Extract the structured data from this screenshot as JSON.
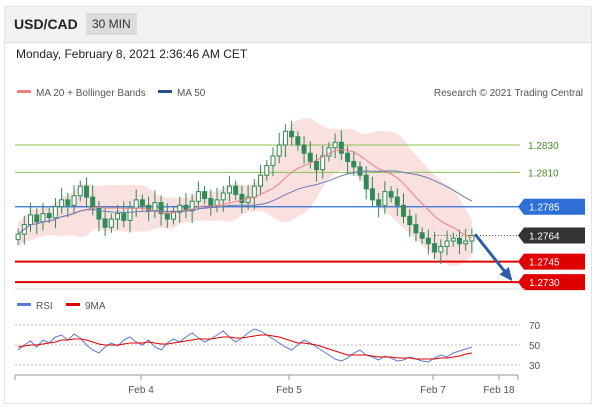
{
  "header": {
    "symbol": "USD/CAD",
    "timeframe": "30 MIN",
    "datetime": "Monday, February 8, 2021 2:36:46 AM CET"
  },
  "legend": {
    "ma20_bollinger": "MA 20 + Bollinger Bands",
    "ma50": "MA 50",
    "credit": "Research © 2021 Trading Central",
    "rsi": "RSI",
    "ma9": "9MA"
  },
  "colors": {
    "candle": "#2e8b57",
    "ma20": "#f08080",
    "bollinger_fill": "#fadada",
    "ma50": "#6a7ab5",
    "support_line": "#e00000",
    "resistance_line": "#8cc152",
    "pivot_line": "#2e6fd8",
    "last_price_box": "#333333",
    "arrow": "#2e5fa8",
    "rsi_line": "#5b7bd5",
    "rsi_ma": "#e00000"
  },
  "chart_data": [
    {
      "type": "candlestick",
      "title": "USD/CAD 30 MIN",
      "last_price": 1.2764,
      "levels": [
        {
          "value": 1.283,
          "label": "1.2830",
          "kind": "resistance"
        },
        {
          "value": 1.281,
          "label": "1.2810",
          "kind": "resistance"
        },
        {
          "value": 1.2785,
          "label": "1.2785",
          "kind": "pivot"
        },
        {
          "value": 1.2764,
          "label": "1.2764",
          "kind": "last-price"
        },
        {
          "value": 1.2745,
          "label": "1.2745",
          "kind": "support"
        },
        {
          "value": 1.273,
          "label": "1.2730",
          "kind": "support"
        }
      ],
      "ylim": [
        1.2725,
        1.2865
      ],
      "x_ticks": [
        "Feb 4",
        "Feb 5",
        "Feb 7",
        "Feb 18"
      ],
      "forecast_arrow": {
        "from": 1.2765,
        "to": 1.2732
      },
      "close_series": [
        1.2765,
        1.2772,
        1.2779,
        1.2774,
        1.278,
        1.2777,
        1.2785,
        1.279,
        1.2786,
        1.2793,
        1.28,
        1.2792,
        1.2784,
        1.2776,
        1.277,
        1.2776,
        1.278,
        1.2775,
        1.2784,
        1.279,
        1.2786,
        1.2782,
        1.2788,
        1.278,
        1.2776,
        1.2781,
        1.2786,
        1.2782,
        1.2789,
        1.2796,
        1.2791,
        1.2786,
        1.279,
        1.2795,
        1.28,
        1.2794,
        1.2788,
        1.2792,
        1.28,
        1.2808,
        1.2815,
        1.2822,
        1.283,
        1.284,
        1.2836,
        1.283,
        1.2824,
        1.2818,
        1.2812,
        1.2822,
        1.2828,
        1.2832,
        1.2824,
        1.2818,
        1.2814,
        1.2808,
        1.2798,
        1.279,
        1.2786,
        1.2796,
        1.2792,
        1.2786,
        1.2778,
        1.2772,
        1.2766,
        1.2762,
        1.2758,
        1.2752,
        1.2756,
        1.276,
        1.2762,
        1.2758,
        1.276,
        1.2764
      ]
    },
    {
      "type": "line",
      "title": "RSI",
      "y_ticks": [
        70,
        50,
        30
      ],
      "ylim": [
        20,
        80
      ],
      "series": [
        {
          "name": "RSI",
          "values": [
            45,
            50,
            54,
            48,
            55,
            52,
            58,
            60,
            55,
            61,
            57,
            50,
            45,
            42,
            48,
            52,
            49,
            55,
            58,
            53,
            50,
            55,
            48,
            45,
            52,
            56,
            53,
            58,
            62,
            57,
            53,
            56,
            60,
            64,
            58,
            53,
            57,
            62,
            66,
            64,
            60,
            56,
            52,
            48,
            45,
            50,
            55,
            52,
            48,
            44,
            40,
            36,
            34,
            37,
            42,
            45,
            40,
            38,
            35,
            39,
            37,
            34,
            35,
            38,
            36,
            34,
            33,
            37,
            40,
            38,
            42,
            44,
            46,
            48
          ]
        },
        {
          "name": "9MA",
          "values": [
            48,
            49,
            50,
            50,
            51,
            52,
            53,
            55,
            55,
            56,
            56,
            55,
            53,
            51,
            50,
            50,
            50,
            51,
            52,
            52,
            52,
            53,
            52,
            51,
            51,
            52,
            53,
            54,
            55,
            56,
            56,
            56,
            57,
            58,
            58,
            57,
            57,
            58,
            59,
            60,
            60,
            59,
            58,
            56,
            54,
            52,
            52,
            51,
            50,
            48,
            46,
            44,
            42,
            40,
            40,
            40,
            40,
            39,
            38,
            38,
            38,
            37,
            37,
            37,
            36,
            36,
            36,
            36,
            37,
            37,
            38,
            39,
            41,
            42
          ]
        }
      ]
    }
  ]
}
